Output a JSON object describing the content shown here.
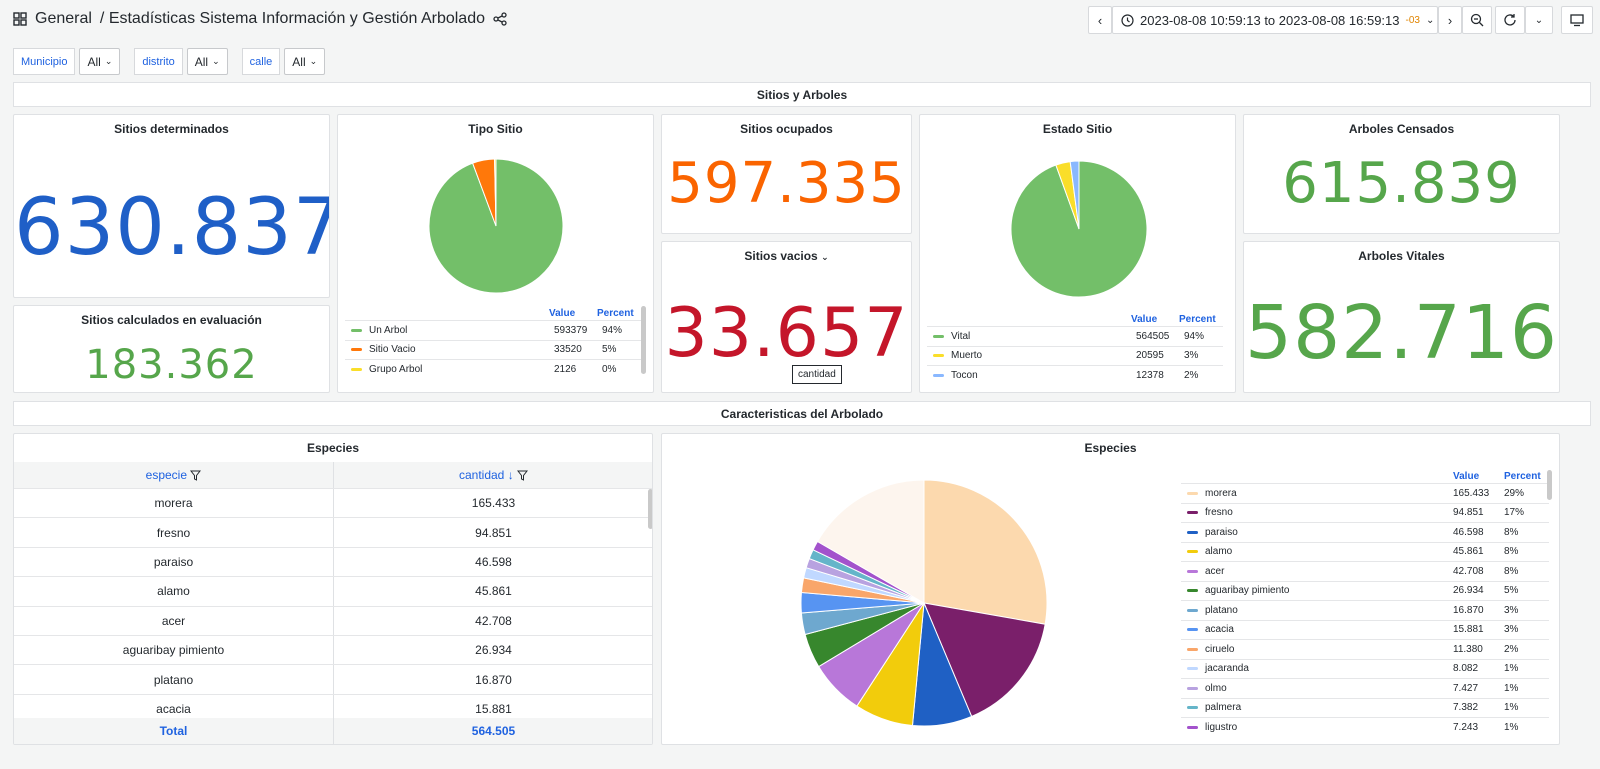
{
  "header": {
    "folder": "General",
    "title": "/ Estadísticas Sistema Información y Gestión Arbolado",
    "time_range": "2023-08-08 10:59:13 to 2023-08-08 16:59:13",
    "tz": "-03"
  },
  "vars": [
    {
      "label": "Municipio",
      "value": "All"
    },
    {
      "label": "distrito",
      "value": "All"
    },
    {
      "label": "calle",
      "value": "All"
    }
  ],
  "rows": {
    "r1": "Sitios y Arboles",
    "r2": "Caracteristicas del Arbolado"
  },
  "stats": {
    "sitios_det": {
      "title": "Sitios determinados",
      "value": "630.837",
      "color": "#1f5fc7"
    },
    "sitios_calc": {
      "title": "Sitios calculados en evaluación",
      "value": "183.362",
      "color": "#56a64b"
    },
    "sitios_ocup": {
      "title": "Sitios ocupados",
      "value": "597.335",
      "color": "#fa6400"
    },
    "sitios_vac": {
      "title": "Sitios vacios",
      "value": "33.657",
      "color": "#c4162a",
      "tooltip": "cantidad"
    },
    "arboles_cens": {
      "title": "Arboles Censados",
      "value": "615.839",
      "color": "#56a64b"
    },
    "arboles_vit": {
      "title": "Arboles Vitales",
      "value": "582.716",
      "color": "#56a64b"
    }
  },
  "tipo_sitio": {
    "title": "Tipo Sitio",
    "col_value": "Value",
    "col_percent": "Percent",
    "items": [
      {
        "name": "Un Arbol",
        "value": "593379",
        "pct": "94%",
        "color": "#73bf69",
        "n": 593379
      },
      {
        "name": "Sitio Vacio",
        "value": "33520",
        "pct": "5%",
        "color": "#ff780a",
        "n": 33520
      },
      {
        "name": "Grupo Arbol",
        "value": "2126",
        "pct": "0%",
        "color": "#fade2a",
        "n": 2126
      }
    ]
  },
  "estado_sitio": {
    "title": "Estado Sitio",
    "col_value": "Value",
    "col_percent": "Percent",
    "items": [
      {
        "name": "Vital",
        "value": "564505",
        "pct": "94%",
        "color": "#73bf69",
        "n": 564505
      },
      {
        "name": "Muerto",
        "value": "20595",
        "pct": "3%",
        "color": "#fade2a",
        "n": 20595
      },
      {
        "name": "Tocon",
        "value": "12378",
        "pct": "2%",
        "color": "#8ab8ff",
        "n": 12378
      }
    ]
  },
  "especies_table": {
    "title": "Especies",
    "col1": "especie",
    "col2": "cantidad",
    "rows": [
      {
        "especie": "morera",
        "cantidad": "165.433"
      },
      {
        "especie": "fresno",
        "cantidad": "94.851"
      },
      {
        "especie": "paraiso",
        "cantidad": "46.598"
      },
      {
        "especie": "alamo",
        "cantidad": "45.861"
      },
      {
        "especie": "acer",
        "cantidad": "42.708"
      },
      {
        "especie": "aguaribay pimiento",
        "cantidad": "26.934"
      },
      {
        "especie": "platano",
        "cantidad": "16.870"
      },
      {
        "especie": "acacia",
        "cantidad": "15.881"
      }
    ],
    "total_label": "Total",
    "total_value": "564.505"
  },
  "especies_pie": {
    "title": "Especies",
    "col_value": "Value",
    "col_percent": "Percent",
    "items": [
      {
        "name": "morera",
        "value": "165.433",
        "pct": "29%",
        "color": "#fcd9ae",
        "n": 165433
      },
      {
        "name": "fresno",
        "value": "94.851",
        "pct": "17%",
        "color": "#7a1f6a",
        "n": 94851
      },
      {
        "name": "paraiso",
        "value": "46.598",
        "pct": "8%",
        "color": "#1f60c4",
        "n": 46598
      },
      {
        "name": "alamo",
        "value": "45.861",
        "pct": "8%",
        "color": "#f2cc0c",
        "n": 45861
      },
      {
        "name": "acer",
        "value": "42.708",
        "pct": "8%",
        "color": "#b877d9",
        "n": 42708
      },
      {
        "name": "aguaribay pimiento",
        "value": "26.934",
        "pct": "5%",
        "color": "#37872d",
        "n": 26934
      },
      {
        "name": "platano",
        "value": "16.870",
        "pct": "3%",
        "color": "#6ea8cf",
        "n": 16870
      },
      {
        "name": "acacia",
        "value": "15.881",
        "pct": "3%",
        "color": "#5794f2",
        "n": 15881
      },
      {
        "name": "ciruelo",
        "value": "11.380",
        "pct": "2%",
        "color": "#f9a66a",
        "n": 11380
      },
      {
        "name": "jacaranda",
        "value": "8.082",
        "pct": "1%",
        "color": "#c0d8ff",
        "n": 8082
      },
      {
        "name": "olmo",
        "value": "7.427",
        "pct": "1%",
        "color": "#b8a2e0",
        "n": 7427
      },
      {
        "name": "palmera",
        "value": "7.382",
        "pct": "1%",
        "color": "#65b5c9",
        "n": 7382
      },
      {
        "name": "ligustro",
        "value": "7.243",
        "pct": "1%",
        "color": "#a352cc",
        "n": 7243
      }
    ]
  }
}
